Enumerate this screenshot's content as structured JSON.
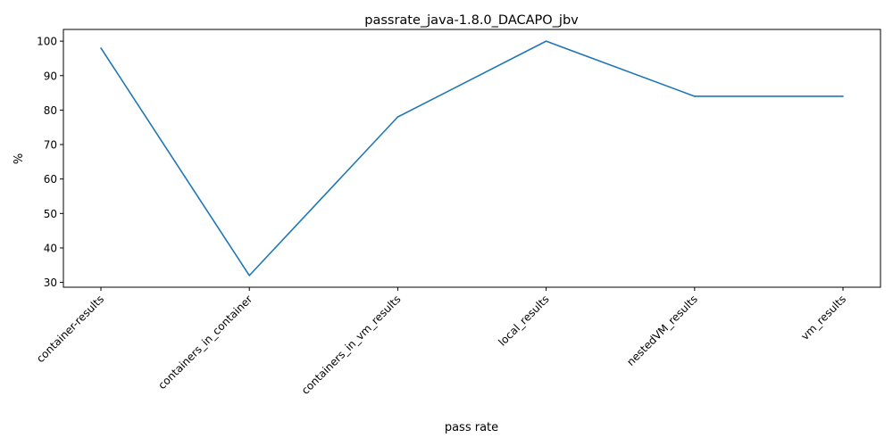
{
  "chart_data": {
    "type": "line",
    "title": "passrate_java-1.8.0_DACAPO_jbv",
    "xlabel": "pass rate",
    "ylabel": "%",
    "categories": [
      "container-results",
      "containers_in_container",
      "containers_in_vm_results",
      "local_results",
      "nestedVM_results",
      "vm_results"
    ],
    "series": [
      {
        "values": [
          98,
          32,
          78,
          100,
          84,
          84
        ],
        "color": "#1f77b4"
      }
    ],
    "ylim": [
      28.6,
      103.4
    ],
    "yticks": [
      30,
      40,
      50,
      60,
      70,
      80,
      90,
      100
    ],
    "grid": false,
    "legend": "none"
  }
}
